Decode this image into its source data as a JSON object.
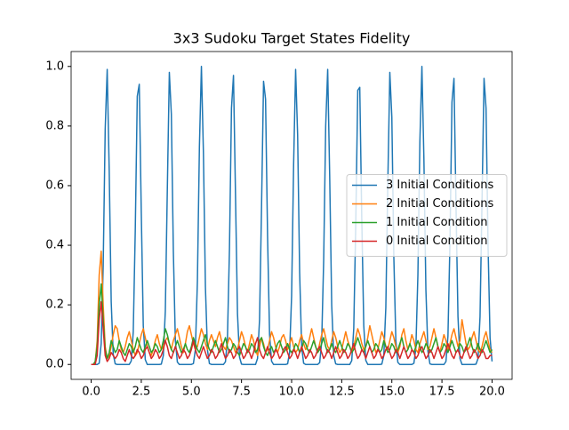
{
  "chart_data": {
    "type": "line",
    "title": "3x3 Sudoku Target States Fidelity",
    "x": [
      0,
      0.1,
      0.2,
      0.3,
      0.4,
      0.5,
      0.6,
      0.7,
      0.8,
      0.9,
      1,
      1.1,
      1.2,
      1.3,
      1.4,
      1.5,
      1.6,
      1.7,
      1.8,
      1.9,
      2,
      2.1,
      2.2,
      2.3,
      2.4,
      2.5,
      2.6,
      2.7,
      2.8,
      2.9,
      3,
      3.1,
      3.2,
      3.3,
      3.4,
      3.5,
      3.6,
      3.7,
      3.8,
      3.9,
      4,
      4.1,
      4.2,
      4.3,
      4.4,
      4.5,
      4.6,
      4.7,
      4.8,
      4.9,
      5,
      5.1,
      5.2,
      5.3,
      5.4,
      5.5,
      5.6,
      5.7,
      5.8,
      5.9,
      6,
      6.1,
      6.2,
      6.3,
      6.4,
      6.5,
      6.6,
      6.7,
      6.8,
      6.9,
      7,
      7.1,
      7.2,
      7.3,
      7.4,
      7.5,
      7.6,
      7.7,
      7.8,
      7.9,
      8,
      8.1,
      8.2,
      8.3,
      8.4,
      8.5,
      8.6,
      8.7,
      8.8,
      8.9,
      9,
      9.1,
      9.2,
      9.3,
      9.4,
      9.5,
      9.6,
      9.7,
      9.8,
      9.9,
      10,
      10.1,
      10.2,
      10.3,
      10.4,
      10.5,
      10.6,
      10.7,
      10.8,
      10.9,
      11,
      11.1,
      11.2,
      11.3,
      11.4,
      11.5,
      11.6,
      11.7,
      11.8,
      11.9,
      12,
      12.1,
      12.2,
      12.3,
      12.4,
      12.5,
      12.6,
      12.7,
      12.8,
      12.9,
      13,
      13.1,
      13.2,
      13.3,
      13.4,
      13.5,
      13.6,
      13.7,
      13.8,
      13.9,
      14,
      14.1,
      14.2,
      14.3,
      14.4,
      14.5,
      14.6,
      14.7,
      14.8,
      14.9,
      15,
      15.1,
      15.2,
      15.3,
      15.4,
      15.5,
      15.6,
      15.7,
      15.8,
      15.9,
      16,
      16.1,
      16.2,
      16.3,
      16.4,
      16.5,
      16.6,
      16.7,
      16.8,
      16.9,
      17,
      17.1,
      17.2,
      17.3,
      17.4,
      17.5,
      17.6,
      17.7,
      17.8,
      17.9,
      18,
      18.1,
      18.2,
      18.3,
      18.4,
      18.5,
      18.6,
      18.7,
      18.8,
      18.9,
      19,
      19.1,
      19.2,
      19.3,
      19.4,
      19.5,
      19.6,
      19.7,
      19.8,
      19.9,
      20
    ],
    "series": [
      {
        "name": "3 Initial Conditions",
        "color": "#1f77b4",
        "values": [
          0,
          0,
          0,
          0,
          0.004,
          0.07,
          0.33,
          0.79,
          0.99,
          0.65,
          0.21,
          0.035,
          0.002,
          0,
          0,
          0,
          0,
          0,
          0,
          0,
          0.012,
          0.11,
          0.45,
          0.9,
          0.94,
          0.51,
          0.13,
          0.016,
          0,
          0,
          0,
          0,
          0,
          0,
          0,
          0.001,
          0.03,
          0.18,
          0.59,
          0.98,
          0.84,
          0.38,
          0.08,
          0.008,
          0,
          0,
          0,
          0,
          0,
          0,
          0,
          0.003,
          0.05,
          0.28,
          0.73,
          1,
          0.71,
          0.26,
          0.05,
          0.003,
          0,
          0,
          0,
          0,
          0,
          0,
          0,
          0.009,
          0.09,
          0.39,
          0.86,
          0.97,
          0.57,
          0.17,
          0.025,
          0.001,
          0,
          0,
          0,
          0,
          0,
          0,
          0,
          0.02,
          0.15,
          0.53,
          0.95,
          0.89,
          0.43,
          0.1,
          0.011,
          0,
          0,
          0,
          0,
          0,
          0,
          0,
          0.002,
          0.04,
          0.23,
          0.67,
          0.99,
          0.77,
          0.31,
          0.06,
          0.004,
          0,
          0,
          0,
          0,
          0,
          0,
          0,
          0.006,
          0.075,
          0.35,
          0.8,
          0.99,
          0.63,
          0.2,
          0.03,
          0.002,
          0,
          0,
          0,
          0,
          0,
          0,
          0,
          0.013,
          0.12,
          0.47,
          0.92,
          0.93,
          0.49,
          0.13,
          0.014,
          0,
          0,
          0,
          0,
          0,
          0,
          0,
          0.001,
          0.03,
          0.19,
          0.61,
          0.98,
          0.83,
          0.36,
          0.08,
          0.007,
          0,
          0,
          0,
          0,
          0,
          0,
          0,
          0.004,
          0.055,
          0.3,
          0.75,
          1,
          0.69,
          0.25,
          0.045,
          0.002,
          0,
          0,
          0,
          0,
          0,
          0,
          0,
          0.01,
          0.095,
          0.41,
          0.88,
          0.96,
          0.54,
          0.16,
          0.02,
          0,
          0,
          0,
          0,
          0,
          0,
          0,
          0.001,
          0.02,
          0.16,
          0.55,
          0.96,
          0.86,
          0.4,
          0.09,
          0.01
        ]
      },
      {
        "name": "2 Initial Conditions",
        "color": "#ff7f0e",
        "values": [
          0,
          0,
          0.005,
          0.08,
          0.3,
          0.38,
          0.2,
          0.06,
          0.02,
          0.03,
          0.06,
          0.1,
          0.13,
          0.12,
          0.08,
          0.05,
          0.04,
          0.06,
          0.09,
          0.11,
          0.08,
          0.05,
          0.03,
          0.04,
          0.07,
          0.1,
          0.12,
          0.09,
          0.06,
          0.04,
          0.03,
          0.05,
          0.08,
          0.1,
          0.07,
          0.05,
          0.06,
          0.08,
          0.09,
          0.07,
          0.05,
          0.08,
          0.1,
          0.12,
          0.09,
          0.06,
          0.04,
          0.07,
          0.11,
          0.13,
          0.1,
          0.07,
          0.05,
          0.06,
          0.09,
          0.12,
          0.1,
          0.07,
          0.05,
          0.08,
          0.1,
          0.08,
          0.06,
          0.09,
          0.11,
          0.08,
          0.06,
          0.05,
          0.07,
          0.09,
          0.08,
          0.06,
          0.04,
          0.05,
          0.08,
          0.11,
          0.09,
          0.06,
          0.04,
          0.07,
          0.1,
          0.08,
          0.05,
          0.03,
          0.06,
          0.09,
          0.07,
          0.04,
          0.05,
          0.08,
          0.11,
          0.09,
          0.06,
          0.04,
          0.06,
          0.09,
          0.1,
          0.08,
          0.05,
          0.07,
          0.09,
          0.06,
          0.04,
          0.05,
          0.08,
          0.1,
          0.07,
          0.05,
          0.06,
          0.09,
          0.12,
          0.09,
          0.06,
          0.04,
          0.07,
          0.1,
          0.12,
          0.09,
          0.06,
          0.05,
          0.08,
          0.11,
          0.09,
          0.06,
          0.04,
          0.05,
          0.08,
          0.11,
          0.08,
          0.06,
          0.04,
          0.06,
          0.09,
          0.12,
          0.1,
          0.07,
          0.05,
          0.06,
          0.09,
          0.13,
          0.1,
          0.07,
          0.04,
          0.05,
          0.08,
          0.11,
          0.09,
          0.06,
          0.05,
          0.08,
          0.11,
          0.09,
          0.06,
          0.04,
          0.06,
          0.1,
          0.12,
          0.08,
          0.05,
          0.07,
          0.1,
          0.08,
          0.05,
          0.04,
          0.07,
          0.09,
          0.11,
          0.08,
          0.05,
          0.06,
          0.09,
          0.12,
          0.09,
          0.06,
          0.04,
          0.07,
          0.1,
          0.08,
          0.05,
          0.07,
          0.1,
          0.12,
          0.09,
          0.06,
          0.08,
          0.15,
          0.11,
          0.07,
          0.05,
          0.06,
          0.09,
          0.11,
          0.08,
          0.05,
          0.04,
          0.06,
          0.09,
          0.11,
          0.08,
          0.05,
          0.04
        ]
      },
      {
        "name": "1 Initial Condition",
        "color": "#2ca02c",
        "values": [
          0,
          0,
          0.01,
          0.06,
          0.2,
          0.27,
          0.15,
          0.05,
          0.02,
          0.04,
          0.08,
          0.06,
          0.04,
          0.05,
          0.08,
          0.06,
          0.04,
          0.03,
          0.05,
          0.07,
          0.06,
          0.04,
          0.06,
          0.09,
          0.07,
          0.05,
          0.04,
          0.06,
          0.08,
          0.06,
          0.04,
          0.05,
          0.07,
          0.06,
          0.04,
          0.05,
          0.08,
          0.12,
          0.1,
          0.07,
          0.05,
          0.04,
          0.06,
          0.08,
          0.06,
          0.04,
          0.05,
          0.07,
          0.05,
          0.04,
          0.06,
          0.09,
          0.07,
          0.05,
          0.04,
          0.06,
          0.08,
          0.1,
          0.07,
          0.05,
          0.04,
          0.06,
          0.08,
          0.06,
          0.04,
          0.05,
          0.07,
          0.09,
          0.06,
          0.04,
          0.05,
          0.07,
          0.06,
          0.04,
          0.03,
          0.05,
          0.07,
          0.06,
          0.04,
          0.05,
          0.07,
          0.06,
          0.04,
          0.05,
          0.08,
          0.09,
          0.06,
          0.04,
          0.03,
          0.05,
          0.06,
          0.04,
          0.05,
          0.07,
          0.08,
          0.06,
          0.04,
          0.05,
          0.07,
          0.05,
          0.04,
          0.05,
          0.07,
          0.06,
          0.04,
          0.05,
          0.08,
          0.07,
          0.05,
          0.04,
          0.06,
          0.08,
          0.06,
          0.04,
          0.05,
          0.07,
          0.09,
          0.06,
          0.04,
          0.05,
          0.07,
          0.05,
          0.04,
          0.06,
          0.08,
          0.06,
          0.04,
          0.05,
          0.07,
          0.06,
          0.04,
          0.05,
          0.07,
          0.09,
          0.07,
          0.05,
          0.04,
          0.06,
          0.08,
          0.06,
          0.04,
          0.05,
          0.07,
          0.06,
          0.04,
          0.05,
          0.08,
          0.06,
          0.04,
          0.05,
          0.07,
          0.06,
          0.04,
          0.05,
          0.07,
          0.09,
          0.06,
          0.04,
          0.05,
          0.07,
          0.05,
          0.04,
          0.06,
          0.08,
          0.06,
          0.04,
          0.05,
          0.07,
          0.06,
          0.04,
          0.05,
          0.07,
          0.09,
          0.06,
          0.04,
          0.05,
          0.07,
          0.06,
          0.04,
          0.06,
          0.08,
          0.06,
          0.04,
          0.05,
          0.07,
          0.06,
          0.04,
          0.05,
          0.07,
          0.09,
          0.06,
          0.04,
          0.05,
          0.07,
          0.05,
          0.04,
          0.06,
          0.08,
          0.06,
          0.04,
          0.05
        ]
      },
      {
        "name": "0 Initial Condition",
        "color": "#d62728",
        "values": [
          0,
          0,
          0,
          0.03,
          0.15,
          0.21,
          0.12,
          0.03,
          0.01,
          0.02,
          0.04,
          0.03,
          0.02,
          0.03,
          0.05,
          0.04,
          0.02,
          0.01,
          0.03,
          0.05,
          0.03,
          0.02,
          0.03,
          0.05,
          0.04,
          0.02,
          0.03,
          0.05,
          0.06,
          0.04,
          0.02,
          0.03,
          0.05,
          0.04,
          0.02,
          0.03,
          0.05,
          0.08,
          0.06,
          0.03,
          0.02,
          0.04,
          0.06,
          0.04,
          0.02,
          0.03,
          0.05,
          0.04,
          0.02,
          0.03,
          0.05,
          0.08,
          0.05,
          0.03,
          0.02,
          0.04,
          0.06,
          0.04,
          0.02,
          0.03,
          0.05,
          0.04,
          0.02,
          0.03,
          0.05,
          0.07,
          0.04,
          0.02,
          0.03,
          0.05,
          0.04,
          0.02,
          0.03,
          0.05,
          0.06,
          0.04,
          0.02,
          0.03,
          0.05,
          0.04,
          0.02,
          0.04,
          0.07,
          0.09,
          0.05,
          0.03,
          0.02,
          0.04,
          0.06,
          0.04,
          0.02,
          0.03,
          0.05,
          0.04,
          0.02,
          0.03,
          0.05,
          0.06,
          0.04,
          0.02,
          0.03,
          0.05,
          0.04,
          0.02,
          0.04,
          0.06,
          0.04,
          0.02,
          0.03,
          0.05,
          0.04,
          0.02,
          0.03,
          0.05,
          0.06,
          0.04,
          0.02,
          0.03,
          0.05,
          0.04,
          0.02,
          0.04,
          0.06,
          0.04,
          0.02,
          0.03,
          0.05,
          0.04,
          0.02,
          0.03,
          0.05,
          0.07,
          0.04,
          0.02,
          0.03,
          0.05,
          0.04,
          0.02,
          0.04,
          0.06,
          0.04,
          0.02,
          0.03,
          0.05,
          0.04,
          0.02,
          0.03,
          0.05,
          0.06,
          0.04,
          0.02,
          0.03,
          0.05,
          0.04,
          0.02,
          0.04,
          0.06,
          0.04,
          0.02,
          0.03,
          0.05,
          0.04,
          0.02,
          0.03,
          0.05,
          0.06,
          0.04,
          0.02,
          0.03,
          0.05,
          0.04,
          0.02,
          0.04,
          0.06,
          0.04,
          0.02,
          0.03,
          0.05,
          0.07,
          0.05,
          0.03,
          0.02,
          0.04,
          0.05,
          0.03,
          0.02,
          0.04,
          0.06,
          0.04,
          0.02,
          0.03,
          0.05,
          0.04,
          0.02,
          0.03,
          0.05,
          0.04,
          0.02,
          0.02,
          0.03,
          0.03
        ]
      }
    ],
    "xlim": [
      -1,
      21
    ],
    "ylim": [
      -0.05,
      1.05
    ],
    "xticks": [
      {
        "value": 0,
        "label": "0.0"
      },
      2.5,
      {
        "value": 5,
        "label": "5.0"
      },
      7.5,
      {
        "value": 10,
        "label": "10.0"
      },
      12.5,
      {
        "value": 15,
        "label": "15.0"
      },
      17.5,
      {
        "value": 20,
        "label": "20.0"
      }
    ],
    "yticks": [
      {
        "value": 0,
        "label": "0.0"
      },
      0.2,
      0.4,
      0.6,
      0.8,
      {
        "value": 1,
        "label": "1.0"
      }
    ],
    "legend": "center right",
    "grid": false
  }
}
